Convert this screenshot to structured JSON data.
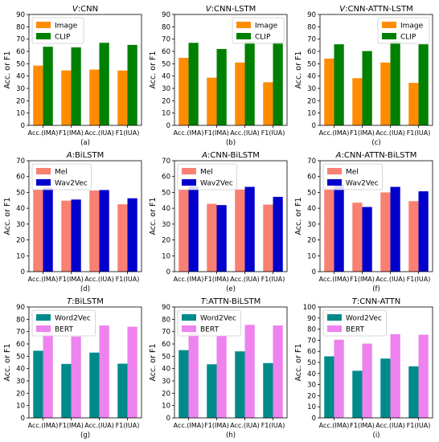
{
  "figure": {
    "ylabel": "Acc. or F1",
    "categories": [
      "Acc.(IMA)",
      "F1(IMA)",
      "Acc.(IUA)",
      "F1(IUA)"
    ]
  },
  "chart_data": [
    {
      "type": "bar",
      "title_prefix": "V",
      "title": ":CNN",
      "panel_label": "(a)",
      "ylabel": "Acc. or F1",
      "categories": [
        "Acc.(IMA)",
        "F1(IMA)",
        "Acc.(IUA)",
        "F1(IUA)"
      ],
      "ylim": [
        0,
        90
      ],
      "yticks": [
        0,
        10,
        20,
        30,
        40,
        50,
        60,
        70,
        80,
        90
      ],
      "legend_position": "top-left",
      "series": [
        {
          "name": "Image",
          "color": "#ff8c00",
          "values": [
            48.5,
            44.6,
            45.3,
            44.5
          ]
        },
        {
          "name": "CLIP",
          "color": "#008000",
          "values": [
            63.8,
            63.3,
            67.0,
            65.3
          ]
        }
      ]
    },
    {
      "type": "bar",
      "title_prefix": "V",
      "title": ":CNN-LSTM",
      "panel_label": "(b)",
      "ylabel": "Acc. or F1",
      "categories": [
        "Acc.(IMA)",
        "F1(IMA)",
        "Acc.(IUA)",
        "F1(IUA)"
      ],
      "ylim": [
        0,
        90
      ],
      "yticks": [
        0,
        10,
        20,
        30,
        40,
        50,
        60,
        70,
        80,
        90
      ],
      "legend_position": "top-right",
      "series": [
        {
          "name": "Image",
          "color": "#ff8c00",
          "values": [
            54.8,
            38.7,
            51.0,
            35.0
          ]
        },
        {
          "name": "CLIP",
          "color": "#008000",
          "values": [
            67.0,
            62.0,
            68.0,
            67.5
          ]
        }
      ]
    },
    {
      "type": "bar",
      "title_prefix": "V",
      "title": ":CNN-ATTN-LSTM",
      "panel_label": "(c)",
      "ylabel": "Acc. or F1",
      "categories": [
        "Acc.(IMA)",
        "F1(IMA)",
        "Acc.(IUA)",
        "F1(IUA)"
      ],
      "ylim": [
        0,
        90
      ],
      "yticks": [
        0,
        10,
        20,
        30,
        40,
        50,
        60,
        70,
        80,
        90
      ],
      "legend_position": "top-right",
      "series": [
        {
          "name": "Image",
          "color": "#ff8c00",
          "values": [
            54.2,
            38.3,
            51.0,
            34.5
          ]
        },
        {
          "name": "CLIP",
          "color": "#008000",
          "values": [
            65.8,
            60.3,
            68.0,
            65.8
          ]
        }
      ]
    },
    {
      "type": "bar",
      "title_prefix": "A",
      "title": ":BiLSTM",
      "panel_label": "(d)",
      "ylabel": "Acc. or F1",
      "categories": [
        "Acc.(IMA)",
        "F1(IMA)",
        "Acc.(IUA)",
        "F1(IUA)"
      ],
      "ylim": [
        0,
        70
      ],
      "yticks": [
        0,
        10,
        20,
        30,
        40,
        50,
        60,
        70
      ],
      "legend_position": "top-left",
      "series": [
        {
          "name": "Mel",
          "color": "#fa8072",
          "values": [
            51.8,
            44.8,
            51.2,
            42.5
          ]
        },
        {
          "name": "Wav2Vec",
          "color": "#0000cd",
          "values": [
            53.0,
            45.5,
            51.5,
            46.3
          ]
        }
      ]
    },
    {
      "type": "bar",
      "title_prefix": "A",
      "title": ":CNN-BiLSTM",
      "panel_label": "(e)",
      "ylabel": "Acc. or F1",
      "categories": [
        "Acc.(IMA)",
        "F1(IMA)",
        "Acc.(IUA)",
        "F1(IUA)"
      ],
      "ylim": [
        0,
        70
      ],
      "yticks": [
        0,
        10,
        20,
        30,
        40,
        50,
        60,
        70
      ],
      "legend_position": "top-left",
      "series": [
        {
          "name": "Mel",
          "color": "#fa8072",
          "values": [
            52.0,
            42.8,
            51.8,
            42.3
          ]
        },
        {
          "name": "Wav2Vec",
          "color": "#0000cd",
          "values": [
            54.0,
            42.0,
            53.5,
            47.2
          ]
        }
      ]
    },
    {
      "type": "bar",
      "title_prefix": "A",
      "title": ":CNN-ATTN-BiLSTM",
      "panel_label": "(f)",
      "ylabel": "Acc. or F1",
      "categories": [
        "Acc.(IMA)",
        "F1(IMA)",
        "Acc.(IUA)",
        "F1(IUA)"
      ],
      "ylim": [
        0,
        70
      ],
      "yticks": [
        0,
        10,
        20,
        30,
        40,
        50,
        60,
        70
      ],
      "legend_position": "top-left",
      "series": [
        {
          "name": "Mel",
          "color": "#fa8072",
          "values": [
            53.3,
            43.5,
            50.0,
            44.5
          ]
        },
        {
          "name": "Wav2Vec",
          "color": "#0000cd",
          "values": [
            54.8,
            40.8,
            53.5,
            50.7
          ]
        }
      ]
    },
    {
      "type": "bar",
      "title_prefix": "T",
      "title": ":BiLSTM",
      "panel_label": "(g)",
      "ylabel": "Acc. or F1",
      "categories": [
        "Acc.(IMA)",
        "F1(IMA)",
        "Acc.(IUA)",
        "F1(IUA)"
      ],
      "ylim": [
        0,
        90
      ],
      "yticks": [
        0,
        10,
        20,
        30,
        40,
        50,
        60,
        70,
        80,
        90
      ],
      "legend_position": "top-left",
      "series": [
        {
          "name": "Word2Vec",
          "color": "#008b8b",
          "values": [
            54.5,
            43.8,
            53.0,
            44.0
          ]
        },
        {
          "name": "BERT",
          "color": "#ee82ee",
          "values": [
            70.0,
            66.0,
            75.0,
            74.0
          ]
        }
      ]
    },
    {
      "type": "bar",
      "title_prefix": "T",
      "title": ":ATTN-BiLSTM",
      "panel_label": "(h)",
      "ylabel": "Acc. or F1",
      "categories": [
        "Acc.(IMA)",
        "F1(IMA)",
        "Acc.(IUA)",
        "F1(IUA)"
      ],
      "ylim": [
        0,
        90
      ],
      "yticks": [
        0,
        10,
        20,
        30,
        40,
        50,
        60,
        70,
        80,
        90
      ],
      "legend_position": "top-left",
      "series": [
        {
          "name": "Word2Vec",
          "color": "#008b8b",
          "values": [
            55.0,
            43.5,
            54.0,
            44.5
          ]
        },
        {
          "name": "BERT",
          "color": "#ee82ee",
          "values": [
            70.0,
            66.5,
            75.5,
            75.0
          ]
        }
      ]
    },
    {
      "type": "bar",
      "title_prefix": "T",
      "title": ":CNN-ATTN",
      "panel_label": "(i)",
      "ylabel": "Acc. or F1",
      "categories": [
        "Acc.(IMA)",
        "F1(IMA)",
        "Acc.(IUA)",
        "F1(IUA)"
      ],
      "ylim": [
        0,
        100
      ],
      "yticks": [
        0,
        10,
        20,
        30,
        40,
        50,
        60,
        70,
        80,
        90,
        100
      ],
      "legend_position": "top-left",
      "series": [
        {
          "name": "Word2Vec",
          "color": "#008b8b",
          "values": [
            55.5,
            42.5,
            53.5,
            46.5
          ]
        },
        {
          "name": "BERT",
          "color": "#ee82ee",
          "values": [
            70.5,
            67.0,
            75.5,
            75.0
          ]
        }
      ]
    }
  ]
}
